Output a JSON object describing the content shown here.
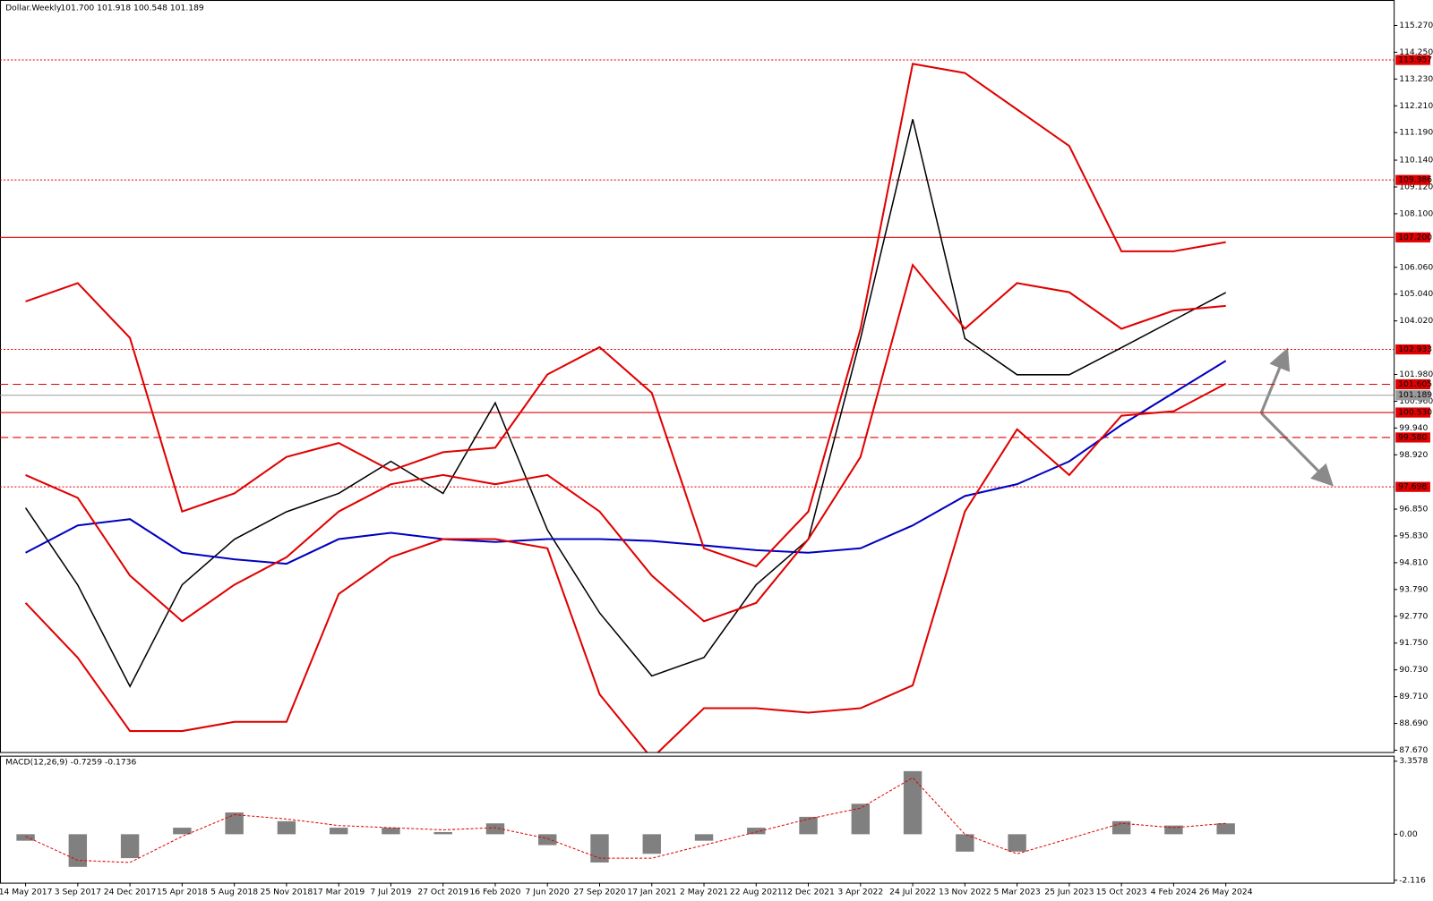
{
  "chart_data": [
    {
      "type": "line",
      "title": "Dollar.Weekly",
      "subtitle": "101.700 101.918 100.548 101.189",
      "categories": [
        "14 May 2017",
        "3 Sep 2017",
        "24 Dec 2017",
        "15 Apr 2018",
        "5 Aug 2018",
        "25 Nov 2018",
        "17 Mar 2019",
        "7 Jul 2019",
        "27 Oct 2019",
        "16 Feb 2020",
        "7 Jun 2020",
        "27 Sep 2020",
        "17 Jan 2021",
        "2 May 2021",
        "22 Aug 2021",
        "12 Dec 2021",
        "3 Apr 2022",
        "24 Jul 2022",
        "13 Nov 2022",
        "5 Mar 2023",
        "25 Jun 2023",
        "15 Oct 2023",
        "4 Feb 2024",
        "26 May 2024"
      ],
      "ylim": [
        87.6,
        116.24
      ],
      "yticks": [
        {
          "value": 115.27,
          "label": "115.270"
        },
        {
          "value": 114.25,
          "label": "114.250"
        },
        {
          "value": 113.23,
          "label": "113.230"
        },
        {
          "value": 112.21,
          "label": "112.210"
        },
        {
          "value": 111.19,
          "label": "111.190"
        },
        {
          "value": 110.14,
          "label": "110.140"
        },
        {
          "value": 109.12,
          "label": "109.120"
        },
        {
          "value": 108.1,
          "label": "108.100"
        },
        {
          "value": 106.06,
          "label": "106.060"
        },
        {
          "value": 105.04,
          "label": "105.040"
        },
        {
          "value": 104.02,
          "label": "104.020"
        },
        {
          "value": 101.98,
          "label": "101.980"
        },
        {
          "value": 100.96,
          "label": "100.960"
        },
        {
          "value": 99.94,
          "label": "99.940"
        },
        {
          "value": 98.92,
          "label": "98.920"
        },
        {
          "value": 96.85,
          "label": "96.850"
        },
        {
          "value": 95.83,
          "label": "95.830"
        },
        {
          "value": 94.81,
          "label": "94.810"
        },
        {
          "value": 93.79,
          "label": "93.790"
        },
        {
          "value": 92.77,
          "label": "92.770"
        },
        {
          "value": 91.75,
          "label": "91.750"
        },
        {
          "value": 90.73,
          "label": "90.730"
        },
        {
          "value": 89.71,
          "label": "89.710"
        },
        {
          "value": 88.69,
          "label": "88.690"
        },
        {
          "value": 87.67,
          "label": "87.670"
        }
      ],
      "levels": [
        {
          "value": 113.957,
          "style": "dotted",
          "color": "#e00000"
        },
        {
          "value": 109.386,
          "style": "dotted",
          "color": "#e00000"
        },
        {
          "value": 107.2,
          "label": "107.200",
          "style": "solid",
          "color": "#e00000"
        },
        {
          "value": 102.933,
          "style": "dotted",
          "color": "#e00000"
        },
        {
          "value": 101.605,
          "style": "dashed",
          "color": "#e00000"
        },
        {
          "value": 101.189,
          "style": "solid",
          "color": "#9a9a9a"
        },
        {
          "value": 100.53,
          "label": "100.530",
          "style": "solid",
          "color": "#e00000"
        },
        {
          "value": 99.58,
          "label": "99.580",
          "style": "dashed",
          "color": "#e00000"
        },
        {
          "value": 97.698,
          "style": "dotted",
          "color": "#e00000"
        }
      ],
      "series": [
        {
          "color": "#000000",
          "values": [
            96.9,
            93.96,
            90.1,
            93.97,
            95.7,
            96.75,
            97.45,
            98.67,
            97.45,
            100.9,
            96.06,
            92.9,
            90.5,
            91.2,
            93.97,
            95.7,
            103.35,
            111.7,
            103.35,
            101.97,
            101.97,
            103.0,
            104.05,
            105.1
          ]
        },
        {
          "color": "#0000c0",
          "values": [
            95.19,
            96.23,
            96.47,
            95.19,
            94.94,
            94.77,
            95.71,
            95.95,
            95.71,
            95.6,
            95.71,
            95.71,
            95.64,
            95.47,
            95.29,
            95.19,
            95.36,
            96.23,
            97.35,
            97.8,
            98.67,
            100.06,
            101.28,
            102.5
          ]
        },
        {
          "color": "#e00000",
          "values": [
            98.15,
            97.28,
            94.32,
            92.58,
            93.97,
            95.02,
            96.76,
            97.8,
            98.15,
            97.8,
            98.15,
            96.76,
            94.32,
            92.58,
            93.28,
            95.71,
            98.84,
            106.15,
            103.72,
            105.46,
            105.11,
            103.72,
            104.41,
            104.59
          ]
        },
        {
          "color": "#e00000",
          "values": [
            104.76,
            105.46,
            103.37,
            96.76,
            97.45,
            98.84,
            99.37,
            98.32,
            99.02,
            99.19,
            101.98,
            103.02,
            101.28,
            95.36,
            94.67,
            96.76,
            103.72,
            113.81,
            113.46,
            112.07,
            110.68,
            106.67,
            106.67,
            107.02
          ]
        },
        {
          "color": "#e00000",
          "values": [
            93.28,
            91.19,
            88.4,
            88.4,
            88.75,
            88.75,
            93.62,
            95.02,
            95.71,
            95.71,
            95.36,
            89.8,
            87.36,
            89.27,
            89.27,
            89.1,
            89.27,
            90.14,
            96.76,
            99.89,
            98.15,
            100.41,
            100.58,
            101.63
          ]
        }
      ]
    },
    {
      "type": "macd",
      "title": "MACD(12,26,9) -0.7259 -0.1736",
      "ylim": [
        -2.23,
        3.61
      ],
      "yticks": [
        3.3578,
        {
          "value": 0,
          "label": "0.00"
        },
        -2.116
      ],
      "series": [
        {
          "color": "#808080",
          "values": [
            -0.3,
            -1.5,
            -1.1,
            0.3,
            1.0,
            0.6,
            0.3,
            0.3,
            0.1,
            0.5,
            -0.5,
            -1.3,
            -0.9,
            -0.3,
            0.3,
            0.8,
            1.4,
            2.9,
            -0.8,
            -0.8,
            0.0,
            0.6,
            0.4,
            0.5
          ]
        },
        {
          "color": "#e00000",
          "values": [
            -0.1,
            -1.2,
            -1.3,
            -0.1,
            0.9,
            0.7,
            0.4,
            0.3,
            0.2,
            0.3,
            -0.2,
            -1.1,
            -1.1,
            -0.5,
            0.1,
            0.7,
            1.2,
            2.6,
            0.0,
            -0.9,
            -0.2,
            0.5,
            0.3,
            0.5
          ]
        }
      ]
    }
  ]
}
